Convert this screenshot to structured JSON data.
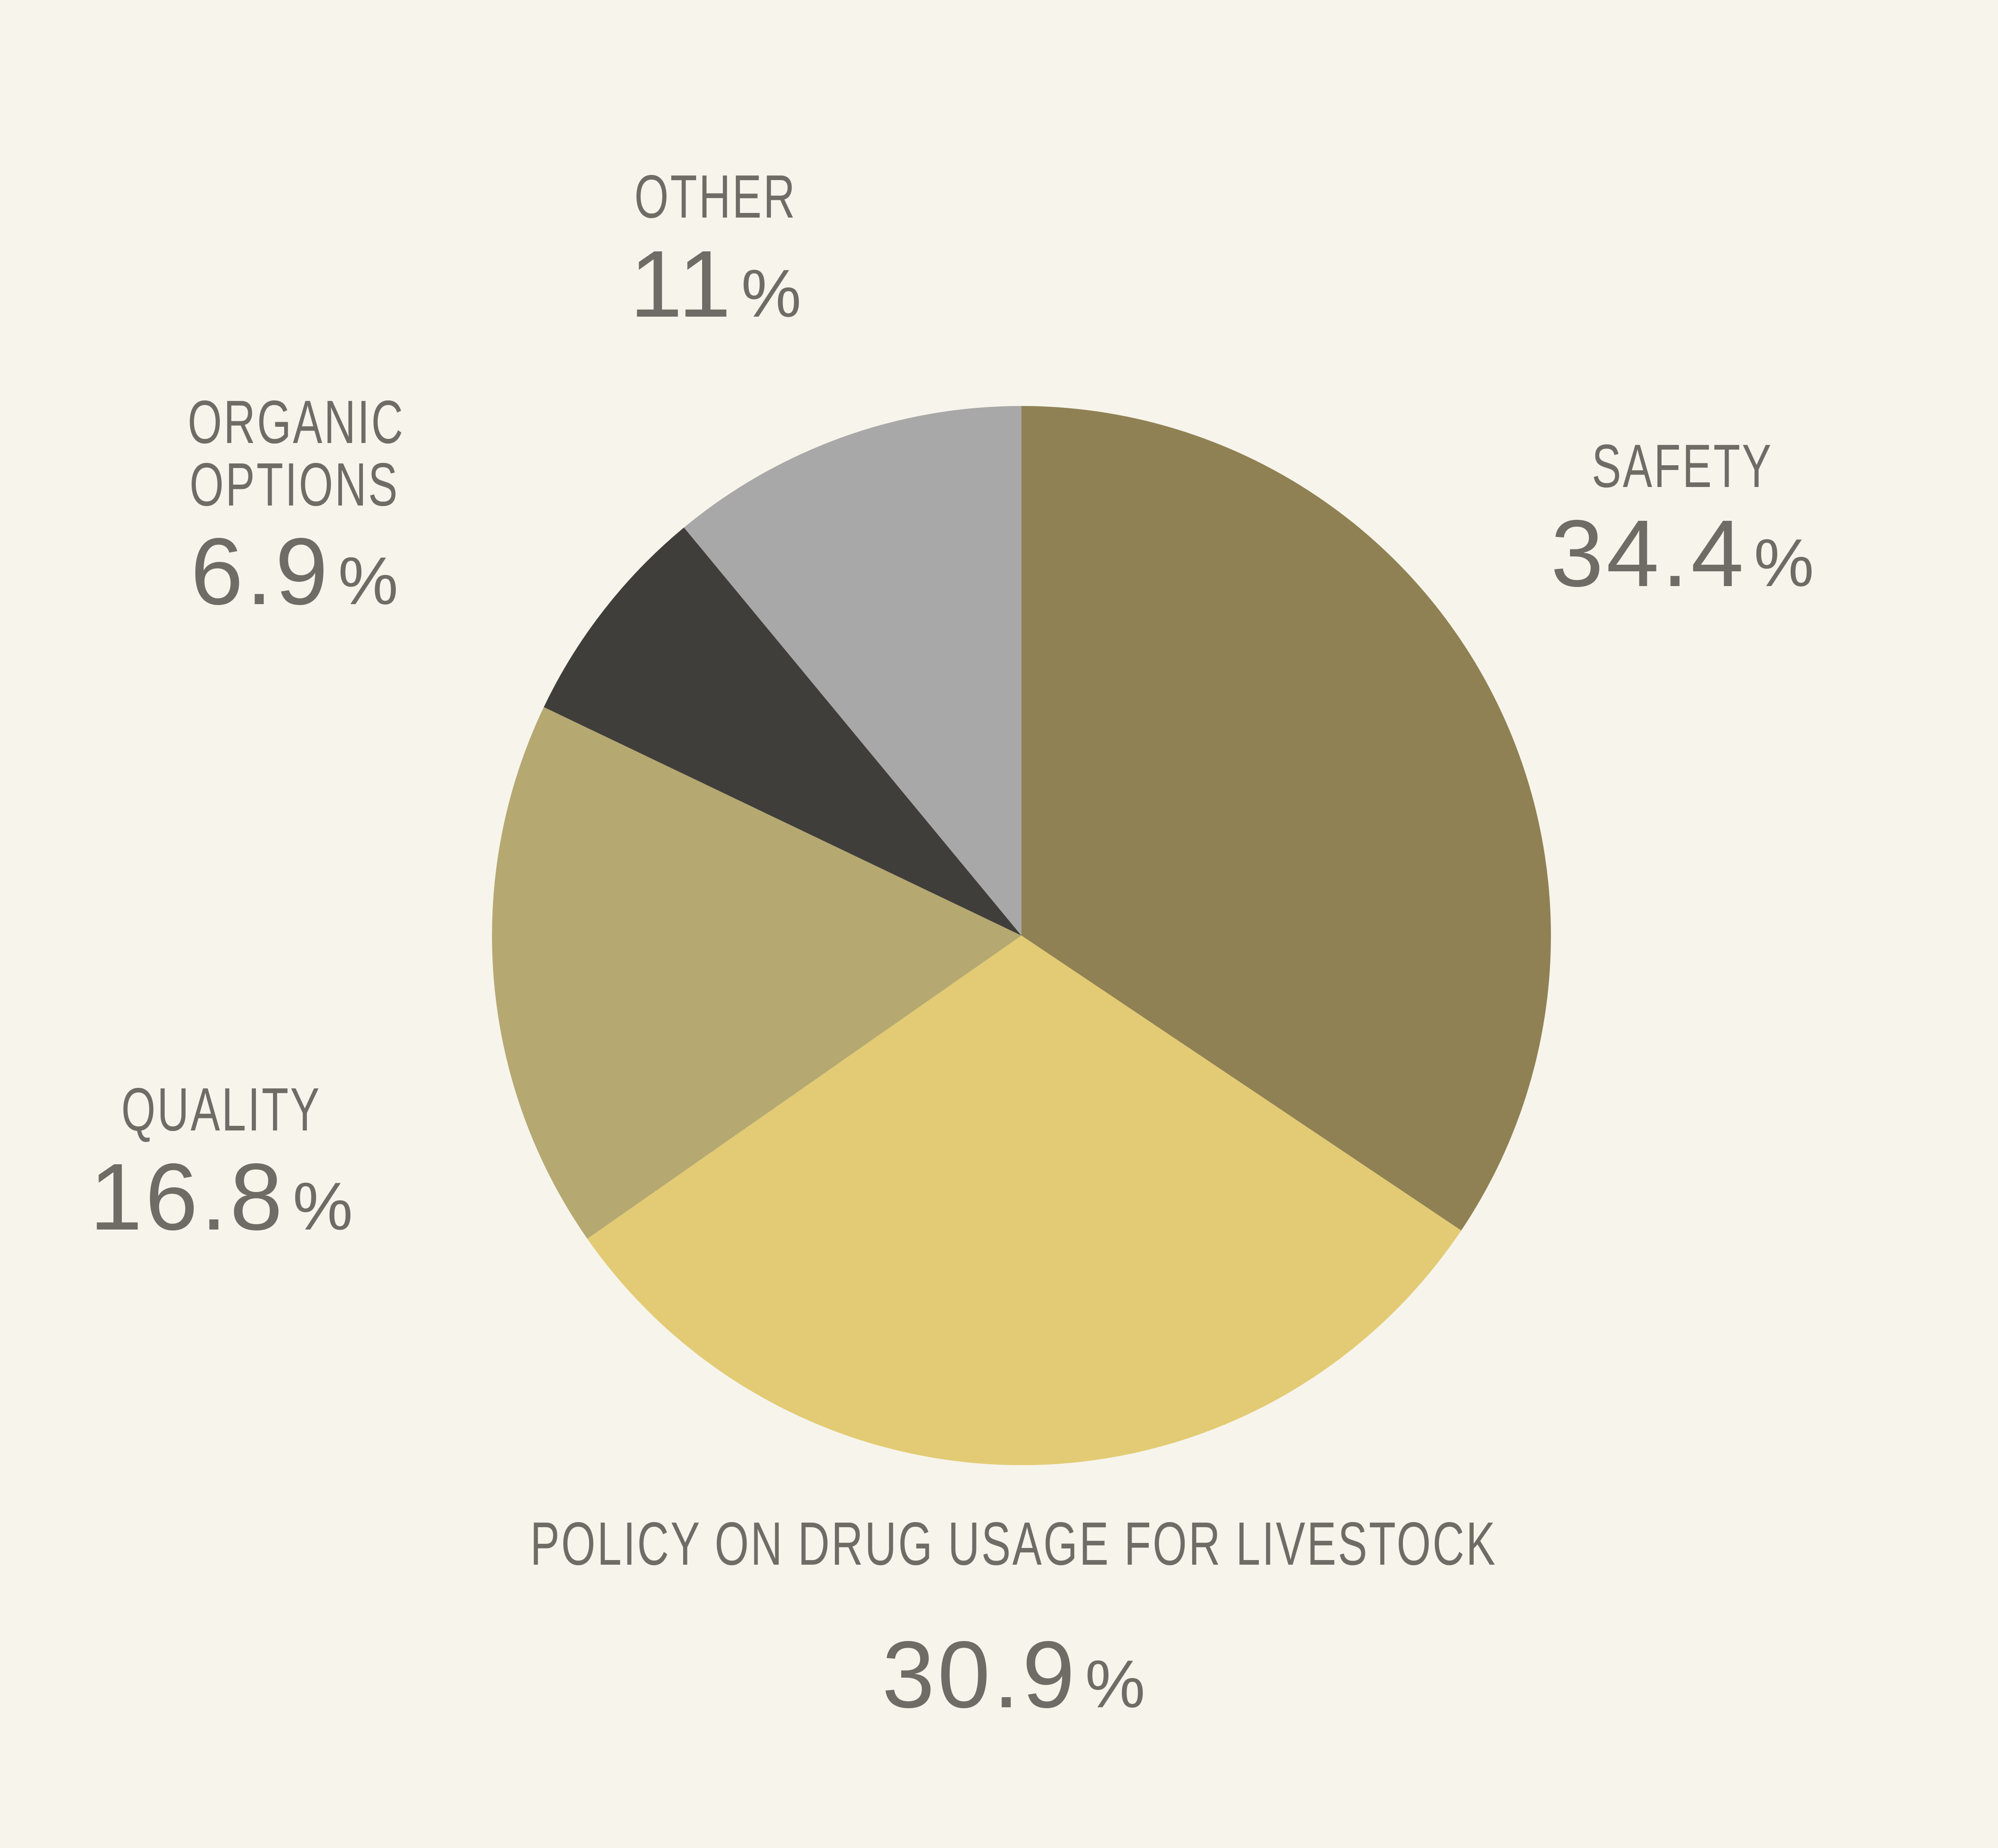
{
  "page": {
    "background_color": "#F7F4EB",
    "text_color": "#6E6C65"
  },
  "percent_suffix": "%",
  "chart_data": {
    "type": "pie",
    "start_angle_deg": -90,
    "direction": "clockwise",
    "legend_position": "labels-around-slices",
    "grid": false,
    "categories": [
      "SAFETY",
      "POLICY ON DRUG USAGE FOR LIVESTOCK",
      "QUALITY",
      "ORGANIC OPTIONS",
      "OTHER"
    ],
    "values": [
      34.4,
      30.9,
      16.8,
      6.9,
      11
    ],
    "slices": [
      {
        "label": "SAFETY",
        "value": 34.4,
        "value_display": "34.4",
        "color": "#8F8153"
      },
      {
        "label": "POLICY ON DRUG USAGE FOR LIVESTOCK",
        "value": 30.9,
        "value_display": "30.9",
        "color": "#E2CB74"
      },
      {
        "label": "QUALITY",
        "value": 16.8,
        "value_display": "16.8",
        "color": "#B5A871"
      },
      {
        "label": "ORGANIC OPTIONS",
        "value": 6.9,
        "value_display": "6.9",
        "color": "#3F3E3A"
      },
      {
        "label": "OTHER",
        "value": 11,
        "value_display": "11",
        "color": "#A9A8A8"
      }
    ]
  }
}
